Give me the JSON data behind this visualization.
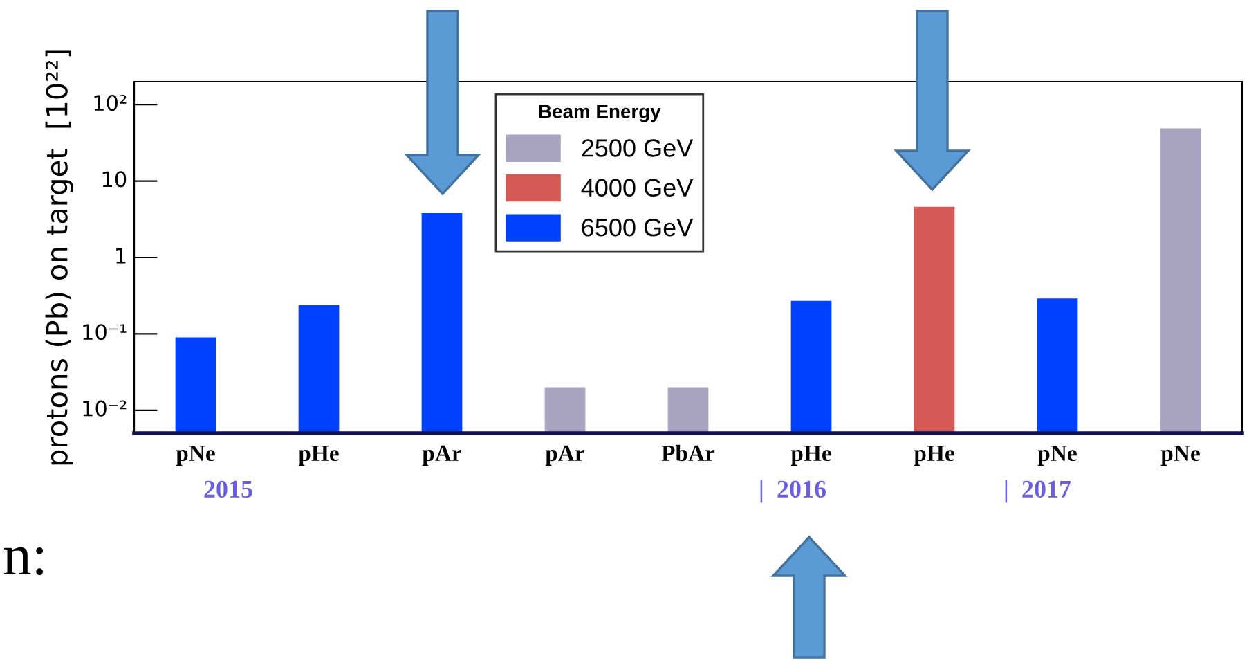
{
  "chart_data": {
    "type": "bar",
    "ylabel": "protons (Pb) on target  [10²²]",
    "legend_title": "Beam Energy",
    "categories": [
      "pNe",
      "pHe",
      "pAr",
      "pAr",
      "PbAr",
      "pHe",
      "pHe",
      "pNe",
      "pNe"
    ],
    "series": [
      {
        "name": "2500 GeV",
        "color": "#a9a4bf",
        "values": [
          null,
          null,
          null,
          0.02,
          0.02,
          null,
          null,
          null,
          49
        ]
      },
      {
        "name": "4000 GeV",
        "color": "#d55a55",
        "values": [
          null,
          null,
          null,
          null,
          null,
          null,
          4.6,
          null,
          null
        ]
      },
      {
        "name": "6500 GeV",
        "color": "#0041ff",
        "values": [
          0.09,
          0.24,
          3.8,
          null,
          null,
          0.27,
          null,
          0.29,
          null
        ]
      }
    ],
    "log": "y",
    "ylim": [
      0.005,
      200
    ],
    "yticks": [
      {
        "value": 0.01,
        "label": "10⁻²"
      },
      {
        "value": 0.1,
        "label": "10⁻¹"
      },
      1,
      10,
      {
        "value": 100,
        "label": "10²"
      }
    ],
    "grid": false,
    "legend": "top",
    "annotations": [
      "2015",
      "|  2016",
      "|  2017",
      "n:"
    ]
  }
}
